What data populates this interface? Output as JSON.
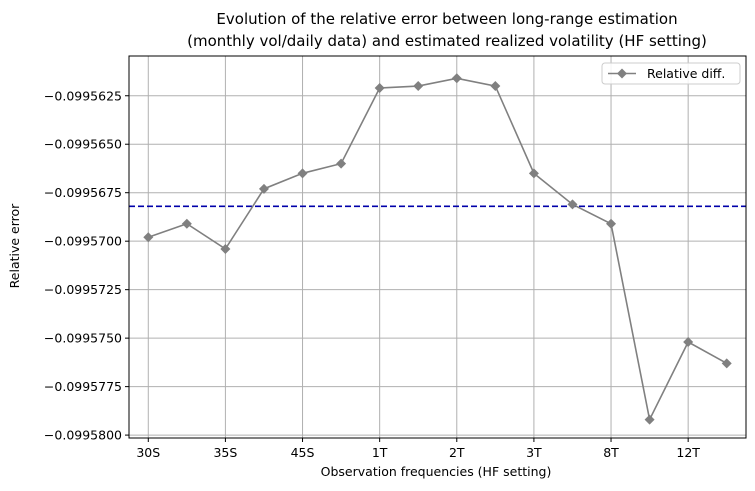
{
  "chart_data": {
    "type": "line",
    "title_lines": [
      "Evolution of the relative error between long-range estimation",
      "(monthly vol/daily data) and estimated realized volatility (HF setting)"
    ],
    "xlabel": "Observation frequencies (HF setting)",
    "ylabel": "Relative error",
    "x_tick_labels": [
      "30S",
      "35S",
      "45S",
      "1T",
      "2T",
      "3T",
      "8T",
      "12T"
    ],
    "y_tick_labels": [
      "−0.0995625",
      "−0.0995650",
      "−0.0995675",
      "−0.0995700",
      "−0.0995725",
      "−0.0995750",
      "−0.0995775",
      "−0.0995800"
    ],
    "y_ticks": [
      -0.0995625,
      -0.099565,
      -0.0995675,
      -0.09957,
      -0.0995725,
      -0.099575,
      -0.0995775,
      -0.09958
    ],
    "ylim": [
      -0.09958015,
      -0.09956045
    ],
    "xlim": [
      -0.5,
      15.5
    ],
    "grid": true,
    "legend_position": "top-right",
    "series": [
      {
        "name": "Relative diff.",
        "color": "#808080",
        "marker": "diamond",
        "x": [
          0,
          1,
          2,
          3,
          4,
          5,
          6,
          7,
          8,
          9,
          10,
          11,
          12,
          13,
          14,
          15
        ],
        "values": [
          -0.0995698,
          -0.0995691,
          -0.0995704,
          -0.0995673,
          -0.0995665,
          -0.099566,
          -0.0995621,
          -0.099562,
          -0.0995616,
          -0.099562,
          -0.0995665,
          -0.0995681,
          -0.0995691,
          -0.0995792,
          -0.0995752,
          -0.0995763
        ]
      }
    ],
    "reference_line": {
      "y": -0.0995682,
      "color": "#0000aa",
      "style": "dashed"
    }
  }
}
